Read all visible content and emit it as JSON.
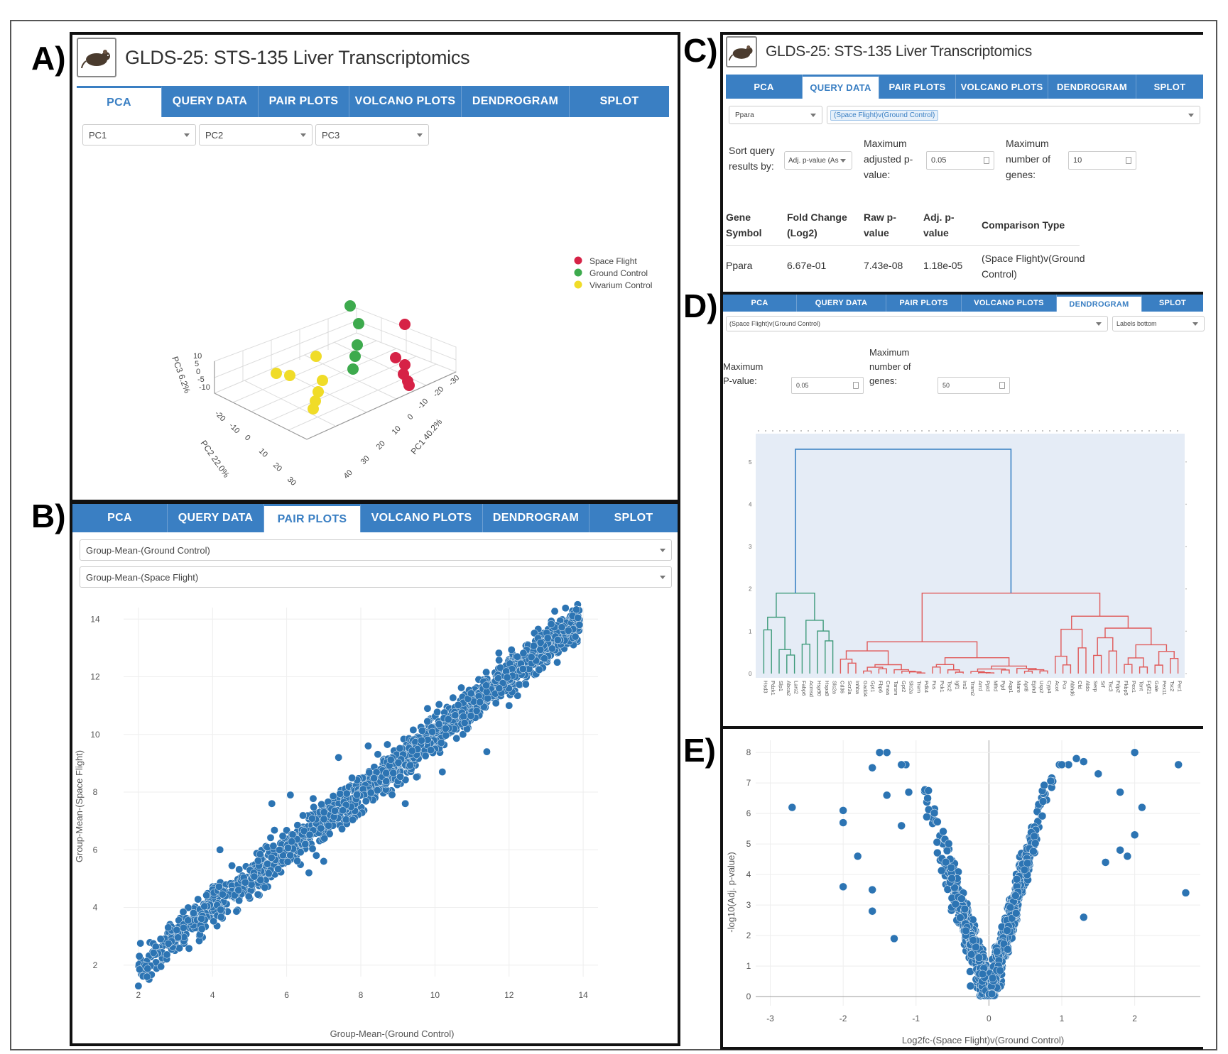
{
  "labels": {
    "a": "A)",
    "b": "B)",
    "c": "C)",
    "d": "D)",
    "e": "E)"
  },
  "app": {
    "title": "GLDS-25: STS-135 Liver Transcriptomics",
    "logo_icon": "mouse-icon"
  },
  "tabs": [
    "PCA",
    "QUERY DATA",
    "PAIR PLOTS",
    "VOLCANO PLOTS",
    "DENDROGRAM",
    "SPLOT"
  ],
  "colors": {
    "tab_bar": "#3a7fc3",
    "space_flight": "#d62246",
    "ground_control": "#3daa4d",
    "vivarium_control": "#f0dc28",
    "scatter": "#2c74b3",
    "cluster_blue": "#3b82c4",
    "cluster_green": "#3d9a7a",
    "cluster_red": "#e05a5a"
  },
  "pca": {
    "selects": [
      "PC1",
      "PC2",
      "PC3"
    ],
    "legend": [
      "Space Flight",
      "Ground Control",
      "Vivarium Control"
    ],
    "axes": {
      "z": "PC3 6.2%",
      "y": "PC2 22.0%",
      "x": "PC1 40.2%"
    },
    "z_ticks": [
      "10",
      "5",
      "0",
      "-5",
      "-10"
    ],
    "y_ticks": [
      "-20",
      "-10",
      "0",
      "10",
      "20",
      "30"
    ],
    "x_ticks": [
      "-30",
      "-20",
      "-10",
      "0",
      "10",
      "20",
      "30",
      "40"
    ]
  },
  "pair": {
    "select_x": "Group-Mean-(Ground Control)",
    "select_y": "Group-Mean-(Space Flight)",
    "chart_data": {
      "type": "scatter",
      "xlabel": "Group-Mean-(Ground Control)",
      "ylabel": "Group-Mean-(Space Flight)",
      "xlim": [
        1.6,
        14.4
      ],
      "ylim": [
        1.6,
        14.4
      ],
      "x_ticks": [
        2,
        4,
        6,
        8,
        10,
        12,
        14
      ],
      "y_ticks": [
        2,
        4,
        6,
        8,
        10,
        12,
        14
      ],
      "grid": true,
      "outliers": [
        [
          4.7,
          4.6
        ],
        [
          5.6,
          7.6
        ],
        [
          6.1,
          7.9
        ],
        [
          6.6,
          5.2
        ],
        [
          7.0,
          5.6
        ],
        [
          7.4,
          9.2
        ],
        [
          8.2,
          9.6
        ],
        [
          9.2,
          7.6
        ],
        [
          10.2,
          8.7
        ],
        [
          10.8,
          10.4
        ],
        [
          11.4,
          9.4
        ],
        [
          12.0,
          11.0
        ],
        [
          13.3,
          12.5
        ],
        [
          13.6,
          13.6
        ],
        [
          13.9,
          13.8
        ],
        [
          4.2,
          6.0
        ],
        [
          9.8,
          10.9
        ],
        [
          6.8,
          5.8
        ]
      ]
    }
  },
  "query": {
    "gene_select": "Ppara",
    "comparison_tag": "(Space Flight)v(Ground Control)",
    "sort_label": "Sort query results by:",
    "sort_value": "Adj. p-value (As",
    "max_adj_label": "Maximum adjusted p-value:",
    "max_adj_value": "0.05",
    "max_genes_label": "Maximum number of genes:",
    "max_genes_value": "10",
    "columns": [
      "Gene Symbol",
      "Fold Change (Log2)",
      "Raw p-value",
      "Adj. p-value",
      "Comparison Type"
    ],
    "rows": [
      {
        "gene": "Ppara",
        "fc": "6.67e-01",
        "raw": "7.43e-08",
        "adj": "1.18e-05",
        "type": "(Space Flight)v(Ground Control)"
      }
    ]
  },
  "dendro": {
    "comparison_select": "(Space Flight)v(Ground Control)",
    "labels_select": "Labels bottom",
    "max_p_label": "Maximum P-value:",
    "max_p_value": "0.05",
    "max_genes_label": "Maximum number of genes:",
    "max_genes_value": "50",
    "chart_data": {
      "type": "dendrogram",
      "ylim": [
        0,
        5.6
      ],
      "y_ticks": [
        0,
        1,
        2,
        3,
        4,
        5
      ],
      "root_height": 5.3,
      "green_cluster_height": 1.9,
      "red_cluster_height": 1.9,
      "leaves": [
        "Hsd3",
        "Pdzk1",
        "Slp1",
        "Abca2",
        "Lars2",
        "Fabp6",
        "Acmsd",
        "Hsp90",
        "Hspa8",
        "Slc2a",
        "Cd36",
        "Scr3a",
        "Inhba",
        "Gadd4",
        "Gpt1",
        "Fbp6",
        "Cmaa",
        "Tarsm",
        "Gpt2",
        "Slc2a",
        "Trem",
        "Pdk4",
        "Fus",
        "Pck1",
        "Tsc2",
        "Igf1",
        "Irs2",
        "Tram2",
        "Arrd",
        "Ppid",
        "Mfrd",
        "Pgd",
        "Aqp1",
        "Mare",
        "Apt8",
        "Ephd",
        "Usp2",
        "Cyp4",
        "Acot",
        "Pcx",
        "Abhd6",
        "Cfd",
        "Aldo",
        "Serp",
        "Srf",
        "Tsc3",
        "Fdp2",
        "Fkbp5",
        "Pex1",
        "Tent",
        "Fgf21",
        "Gale",
        "Pex11",
        "Tsc2",
        "Per1"
      ]
    }
  },
  "volcano": {
    "chart_data": {
      "type": "scatter",
      "xlabel": "Log2fc-(Space Flight)v(Ground Control)",
      "ylabel": "-log10(Adj. p-value)",
      "xlim": [
        -3.2,
        2.9
      ],
      "ylim": [
        -0.3,
        8.4
      ],
      "x_ticks": [
        -3,
        -2,
        -1,
        0,
        1,
        2
      ],
      "y_ticks": [
        0,
        1,
        2,
        3,
        4,
        5,
        6,
        7,
        8
      ],
      "grid": true,
      "outliers": [
        [
          -2.7,
          6.2
        ],
        [
          -2.0,
          6.1
        ],
        [
          -2.0,
          5.7
        ],
        [
          -2.0,
          3.6
        ],
        [
          -1.8,
          4.6
        ],
        [
          -1.6,
          7.5
        ],
        [
          -1.5,
          8.0
        ],
        [
          -1.4,
          8.0
        ],
        [
          -1.2,
          7.6
        ],
        [
          -1.4,
          6.6
        ],
        [
          -1.2,
          5.6
        ],
        [
          -1.1,
          6.7
        ],
        [
          -1.6,
          3.5
        ],
        [
          -1.6,
          2.8
        ],
        [
          -1.3,
          1.9
        ],
        [
          1.0,
          7.6
        ],
        [
          1.2,
          7.8
        ],
        [
          1.3,
          7.7
        ],
        [
          1.5,
          7.3
        ],
        [
          1.8,
          6.7
        ],
        [
          2.1,
          6.2
        ],
        [
          2.0,
          5.3
        ],
        [
          2.0,
          8.0
        ],
        [
          2.6,
          7.6
        ],
        [
          2.7,
          3.4
        ],
        [
          1.6,
          4.4
        ],
        [
          1.8,
          4.8
        ],
        [
          1.9,
          4.6
        ],
        [
          1.3,
          2.6
        ]
      ]
    }
  }
}
